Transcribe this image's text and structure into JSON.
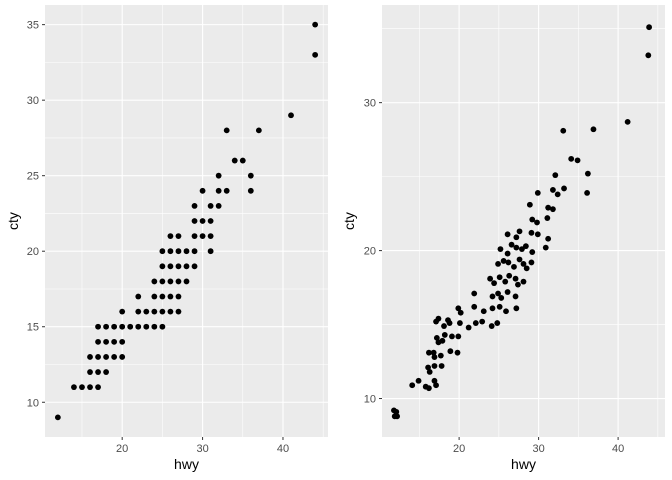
{
  "chart_data": [
    {
      "type": "scatter",
      "title": "",
      "xlabel": "hwy",
      "ylabel": "cty",
      "xlim": [
        10.4,
        45.6
      ],
      "ylim": [
        7.7,
        36.3
      ],
      "xticks": [
        20,
        30,
        40
      ],
      "yticks": [
        10,
        15,
        20,
        25,
        30,
        35
      ],
      "grid": true,
      "panel_bg": "#ebebeb",
      "point_color": "#000000",
      "jitter": false,
      "points": [
        [
          12,
          9
        ],
        [
          14,
          11
        ],
        [
          15,
          11
        ],
        [
          16,
          11
        ],
        [
          17,
          11
        ],
        [
          16,
          12
        ],
        [
          17,
          12
        ],
        [
          18,
          12
        ],
        [
          16,
          13
        ],
        [
          17,
          13
        ],
        [
          18,
          13
        ],
        [
          19,
          13
        ],
        [
          20,
          13
        ],
        [
          17,
          14
        ],
        [
          18,
          14
        ],
        [
          19,
          14
        ],
        [
          20,
          14
        ],
        [
          17,
          15
        ],
        [
          18,
          15
        ],
        [
          19,
          15
        ],
        [
          20,
          15
        ],
        [
          21,
          15
        ],
        [
          22,
          15
        ],
        [
          23,
          15
        ],
        [
          24,
          15
        ],
        [
          25,
          15
        ],
        [
          20,
          16
        ],
        [
          22,
          16
        ],
        [
          23,
          16
        ],
        [
          24,
          16
        ],
        [
          25,
          16
        ],
        [
          26,
          16
        ],
        [
          27,
          16
        ],
        [
          22,
          17
        ],
        [
          24,
          17
        ],
        [
          25,
          17
        ],
        [
          26,
          17
        ],
        [
          27,
          17
        ],
        [
          24,
          18
        ],
        [
          25,
          18
        ],
        [
          26,
          18
        ],
        [
          27,
          18
        ],
        [
          28,
          18
        ],
        [
          25,
          19
        ],
        [
          26,
          19
        ],
        [
          27,
          19
        ],
        [
          28,
          19
        ],
        [
          29,
          19
        ],
        [
          25,
          20
        ],
        [
          26,
          20
        ],
        [
          27,
          20
        ],
        [
          28,
          20
        ],
        [
          29,
          20
        ],
        [
          31,
          20
        ],
        [
          26,
          21
        ],
        [
          27,
          21
        ],
        [
          29,
          21
        ],
        [
          30,
          21
        ],
        [
          31,
          21
        ],
        [
          29,
          22
        ],
        [
          30,
          22
        ],
        [
          31,
          22
        ],
        [
          29,
          23
        ],
        [
          31,
          23
        ],
        [
          32,
          23
        ],
        [
          30,
          24
        ],
        [
          32,
          24
        ],
        [
          33,
          24
        ],
        [
          36,
          24
        ],
        [
          32,
          25
        ],
        [
          36,
          25
        ],
        [
          34,
          26
        ],
        [
          35,
          26
        ],
        [
          33,
          28
        ],
        [
          37,
          28
        ],
        [
          41,
          29
        ],
        [
          44,
          33
        ],
        [
          44,
          35
        ]
      ]
    },
    {
      "type": "scatter",
      "title": "",
      "xlabel": "hwy",
      "ylabel": "cty",
      "xlim": [
        10.3,
        45.9
      ],
      "ylim": [
        7.4,
        36.6
      ],
      "xticks": [
        20,
        30,
        40
      ],
      "yticks": [
        10,
        20,
        30
      ],
      "grid": true,
      "panel_bg": "#ebebeb",
      "point_color": "#000000",
      "jitter": true,
      "points": [
        [
          11.8,
          9.2
        ],
        [
          12.1,
          9.1
        ],
        [
          11.9,
          8.8
        ],
        [
          12.2,
          8.8
        ],
        [
          14.1,
          10.9
        ],
        [
          14.9,
          11.2
        ],
        [
          15.8,
          10.8
        ],
        [
          16.9,
          11.2
        ],
        [
          16.2,
          10.7
        ],
        [
          17.1,
          10.9
        ],
        [
          16.1,
          12.1
        ],
        [
          16.9,
          12.2
        ],
        [
          17.8,
          12.2
        ],
        [
          16.3,
          11.8
        ],
        [
          16.2,
          13.1
        ],
        [
          16.8,
          13.1
        ],
        [
          17.7,
          12.9
        ],
        [
          18.9,
          13.2
        ],
        [
          19.8,
          13.1
        ],
        [
          16.9,
          12.8
        ],
        [
          17.2,
          14.1
        ],
        [
          17.9,
          13.9
        ],
        [
          19.1,
          14.2
        ],
        [
          19.9,
          14.2
        ],
        [
          17.4,
          13.8
        ],
        [
          18.2,
          14.3
        ],
        [
          17.1,
          15.2
        ],
        [
          18.1,
          14.9
        ],
        [
          18.8,
          15.1
        ],
        [
          20.1,
          15.1
        ],
        [
          21.2,
          14.8
        ],
        [
          22.1,
          15.1
        ],
        [
          22.9,
          15.2
        ],
        [
          24.1,
          14.9
        ],
        [
          24.8,
          15.1
        ],
        [
          17.4,
          15.4
        ],
        [
          18.6,
          15.3
        ],
        [
          19.9,
          16.1
        ],
        [
          21.9,
          16.2
        ],
        [
          23.1,
          15.9
        ],
        [
          24.2,
          16.1
        ],
        [
          25.1,
          16.2
        ],
        [
          25.9,
          15.9
        ],
        [
          27.2,
          16.1
        ],
        [
          20.2,
          15.8
        ],
        [
          21.9,
          17.1
        ],
        [
          24.2,
          16.9
        ],
        [
          24.9,
          17.1
        ],
        [
          26.1,
          17.2
        ],
        [
          27.1,
          16.9
        ],
        [
          25.3,
          16.8
        ],
        [
          23.9,
          18.1
        ],
        [
          25.1,
          18.2
        ],
        [
          25.8,
          17.9
        ],
        [
          27.1,
          18.1
        ],
        [
          28.1,
          17.9
        ],
        [
          26.3,
          18.3
        ],
        [
          27.4,
          17.7
        ],
        [
          24.4,
          17.8
        ],
        [
          24.9,
          19.1
        ],
        [
          26.2,
          19.2
        ],
        [
          26.9,
          18.9
        ],
        [
          28.1,
          19.1
        ],
        [
          29.1,
          19.2
        ],
        [
          25.6,
          19.3
        ],
        [
          27.6,
          19.4
        ],
        [
          28.5,
          18.8
        ],
        [
          25.2,
          20.1
        ],
        [
          26.1,
          19.8
        ],
        [
          27.2,
          20.2
        ],
        [
          27.9,
          20.1
        ],
        [
          29.2,
          19.9
        ],
        [
          30.9,
          20.2
        ],
        [
          26.6,
          20.4
        ],
        [
          28.4,
          20.3
        ],
        [
          26.1,
          21.1
        ],
        [
          27.2,
          20.9
        ],
        [
          29.1,
          21.2
        ],
        [
          29.9,
          21.1
        ],
        [
          31.2,
          20.8
        ],
        [
          27.6,
          21.3
        ],
        [
          29.2,
          22.1
        ],
        [
          29.8,
          21.9
        ],
        [
          31.1,
          22.2
        ],
        [
          28.9,
          23.1
        ],
        [
          31.2,
          22.9
        ],
        [
          31.8,
          22.8
        ],
        [
          29.9,
          23.9
        ],
        [
          31.8,
          24.1
        ],
        [
          33.2,
          24.2
        ],
        [
          36.1,
          23.9
        ],
        [
          32.4,
          23.8
        ],
        [
          32.1,
          25.1
        ],
        [
          36.2,
          25.2
        ],
        [
          34.1,
          26.2
        ],
        [
          34.9,
          26.1
        ],
        [
          33.1,
          28.1
        ],
        [
          36.9,
          28.2
        ],
        [
          41.2,
          28.7
        ],
        [
          43.8,
          33.2
        ],
        [
          43.9,
          35.1
        ]
      ]
    }
  ]
}
